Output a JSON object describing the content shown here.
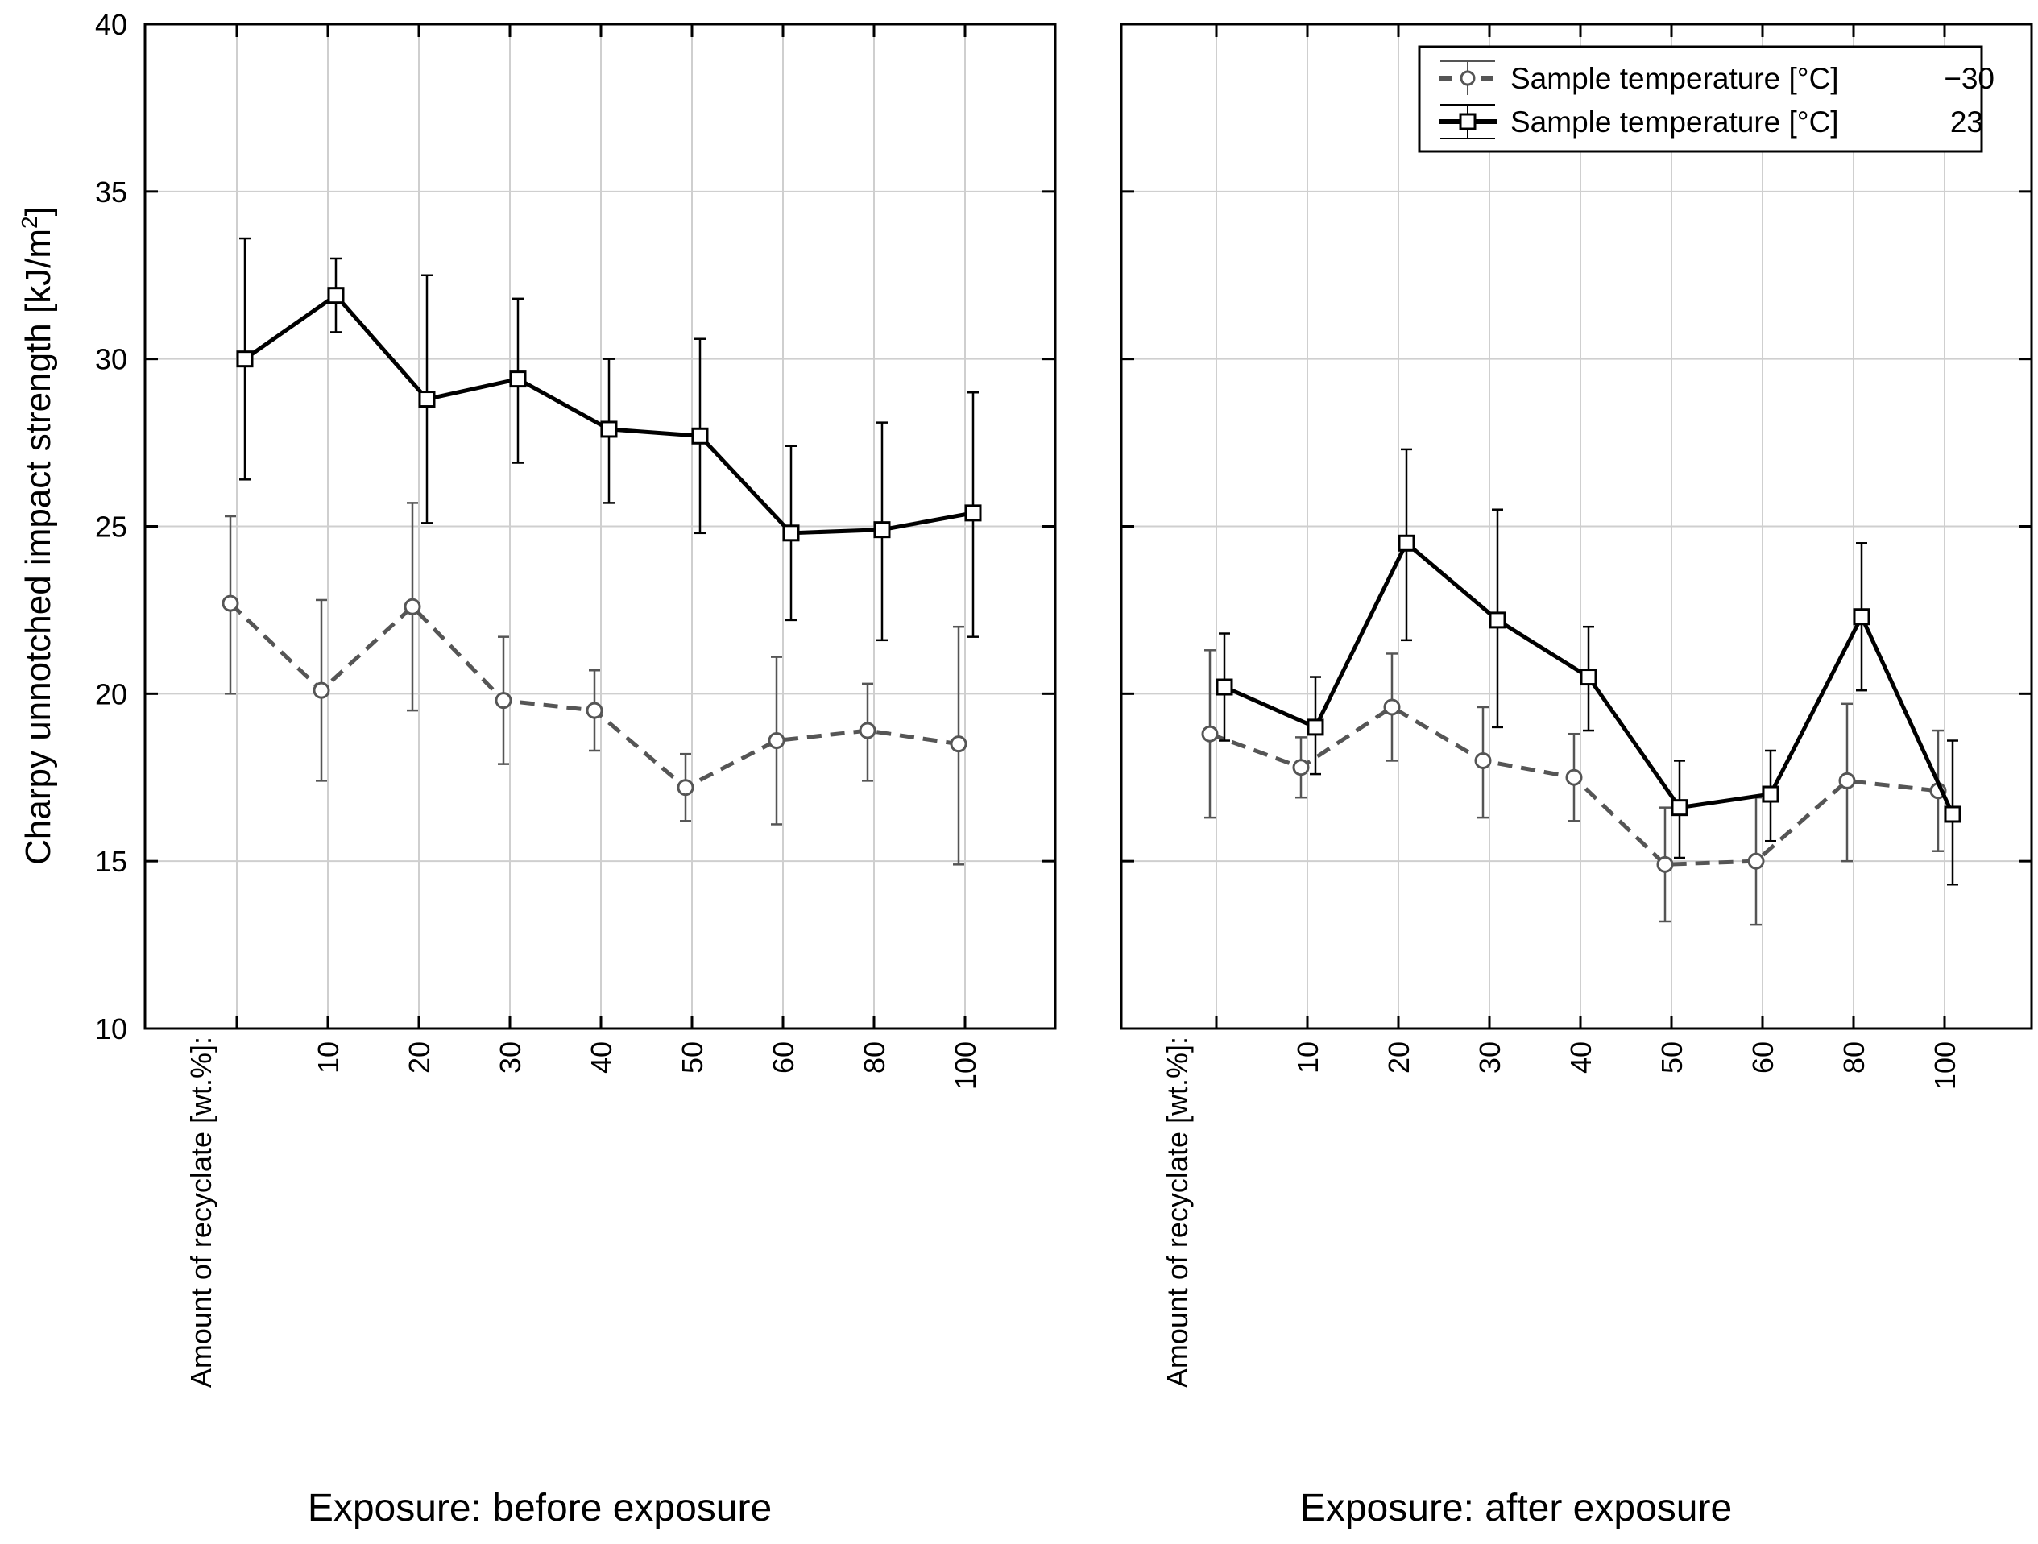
{
  "chart_data": [
    {
      "type": "line",
      "title": "Exposure: before exposure",
      "ylabel": "Charpy unnotched impact strength [kJ/m",
      "ylabel_sup": "2",
      "ylabel_close": "]",
      "xlabel": "Amount of recyclate [wt.%]:",
      "ylim": [
        10,
        40
      ],
      "yticks": [
        10,
        15,
        20,
        25,
        30,
        35,
        40
      ],
      "ytick_labels": [
        "10",
        "15",
        "20",
        "25",
        "30",
        "35",
        "40"
      ],
      "categories": [
        "0",
        "10",
        "20",
        "30",
        "40",
        "50",
        "60",
        "80",
        "100"
      ],
      "category_labels": [
        "",
        "10",
        "20",
        "30",
        "40",
        "50",
        "60",
        "80",
        "100"
      ],
      "grid": true,
      "series": [
        {
          "name": "Sample temperature [°C] −30",
          "style": "dashed",
          "marker": "circle",
          "color": "#555555",
          "values": [
            22.7,
            20.1,
            22.6,
            19.8,
            19.5,
            17.2,
            18.6,
            18.9,
            18.5
          ],
          "err_low": [
            20.0,
            17.4,
            19.5,
            17.9,
            18.3,
            16.2,
            16.1,
            17.4,
            14.9
          ],
          "err_high": [
            25.3,
            22.8,
            25.7,
            21.7,
            20.7,
            18.2,
            21.1,
            20.3,
            22.0
          ]
        },
        {
          "name": "Sample temperature [°C] 23",
          "style": "solid",
          "marker": "square",
          "color": "#000000",
          "values": [
            30.0,
            31.9,
            28.8,
            29.4,
            27.9,
            27.7,
            24.8,
            24.9,
            25.4
          ],
          "err_low": [
            26.4,
            30.8,
            25.1,
            26.9,
            25.7,
            24.8,
            22.2,
            21.6,
            21.7
          ],
          "err_high": [
            33.6,
            33.0,
            32.5,
            31.8,
            30.0,
            30.6,
            27.4,
            28.1,
            29.0
          ]
        }
      ]
    },
    {
      "type": "line",
      "title": "Exposure: after exposure",
      "xlabel": "Amount of recyclate [wt.%]:",
      "ylim": [
        10,
        40
      ],
      "categories": [
        "0",
        "10",
        "20",
        "30",
        "40",
        "50",
        "60",
        "80",
        "100"
      ],
      "category_labels": [
        "",
        "10",
        "20",
        "30",
        "40",
        "50",
        "60",
        "80",
        "100"
      ],
      "grid": true,
      "legend": {
        "position": "top-right",
        "entries": [
          {
            "label": "Sample temperature [°C]",
            "value": "−30",
            "style": "dashed",
            "marker": "circle"
          },
          {
            "label": "Sample temperature [°C]",
            "value": "23",
            "style": "solid",
            "marker": "square"
          }
        ]
      },
      "series": [
        {
          "name": "Sample temperature [°C] −30",
          "style": "dashed",
          "marker": "circle",
          "color": "#555555",
          "values": [
            18.8,
            17.8,
            19.6,
            18.0,
            17.5,
            14.9,
            15.0,
            17.4,
            17.1
          ],
          "err_low": [
            16.3,
            16.9,
            18.0,
            16.3,
            16.2,
            13.2,
            13.1,
            15.0,
            15.3
          ],
          "err_high": [
            21.3,
            18.7,
            21.2,
            19.6,
            18.8,
            16.6,
            16.9,
            19.7,
            18.9
          ]
        },
        {
          "name": "Sample temperature [°C] 23",
          "style": "solid",
          "marker": "square",
          "color": "#000000",
          "values": [
            20.2,
            19.0,
            24.5,
            22.2,
            20.5,
            16.6,
            17.0,
            22.3,
            16.4
          ],
          "err_low": [
            18.6,
            17.6,
            21.6,
            19.0,
            18.9,
            15.1,
            15.6,
            20.1,
            14.3
          ],
          "err_high": [
            21.8,
            20.5,
            27.3,
            25.5,
            22.0,
            18.0,
            18.3,
            24.5,
            18.6
          ]
        }
      ]
    }
  ]
}
